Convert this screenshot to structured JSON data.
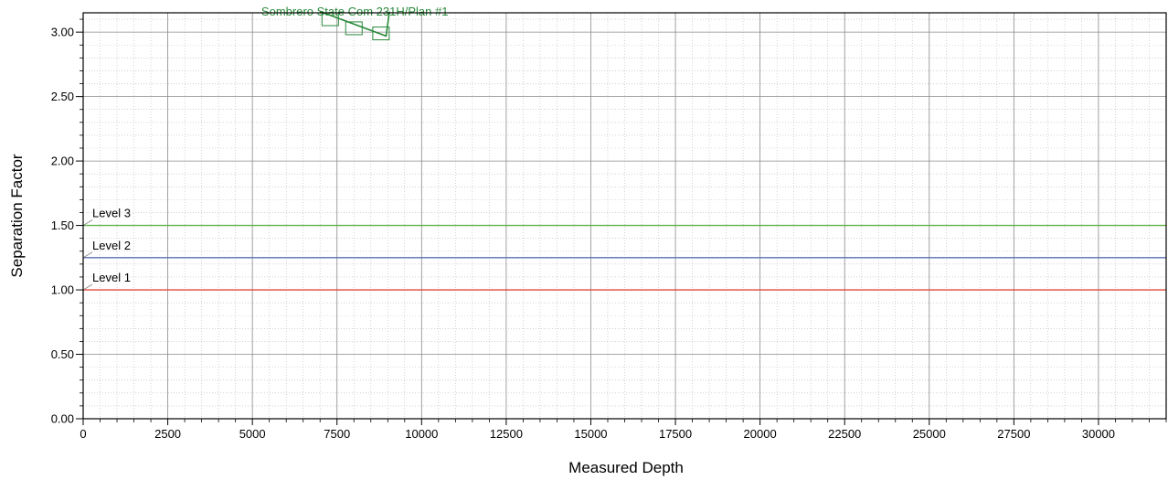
{
  "chart_data": {
    "type": "line",
    "title": "",
    "xlabel": "Measured Depth",
    "ylabel": "Separation Factor",
    "xlim": [
      0,
      32000
    ],
    "ylim": [
      0,
      3.15
    ],
    "xticks": [
      0,
      2500,
      5000,
      7500,
      10000,
      12500,
      15000,
      17500,
      20000,
      22500,
      25000,
      27500,
      30000
    ],
    "xtick_labels": [
      "0",
      "2500",
      "5000",
      "7500",
      "10000",
      "12500",
      "15000",
      "17500",
      "20000",
      "22500",
      "25000",
      "27500",
      "30000"
    ],
    "yticks": [
      0,
      0.5,
      1.0,
      1.5,
      2.0,
      2.5,
      3.0
    ],
    "ytick_labels": [
      "0.00",
      "0.50",
      "1.00",
      "1.50",
      "2.00",
      "2.50",
      "3.00"
    ],
    "grid": true,
    "legend": "none",
    "levels": [
      {
        "label": "Level 1",
        "value": 1.0,
        "color": "#e04a3a"
      },
      {
        "label": "Level 2",
        "value": 1.25,
        "color": "#5a6fb0"
      },
      {
        "label": "Level 3",
        "value": 1.5,
        "color": "#5fb04a"
      }
    ],
    "series": [
      {
        "label": "Sombrero State Com 231H/Plan #1",
        "color": "#2a8a3a",
        "x": [
          7000,
          8950,
          9050
        ],
        "y": [
          3.16,
          2.97,
          3.16
        ],
        "markers": [
          {
            "x": 7300,
            "y": 3.1
          },
          {
            "x": 8000,
            "y": 3.03
          },
          {
            "x": 8800,
            "y": 2.99
          }
        ]
      }
    ]
  }
}
